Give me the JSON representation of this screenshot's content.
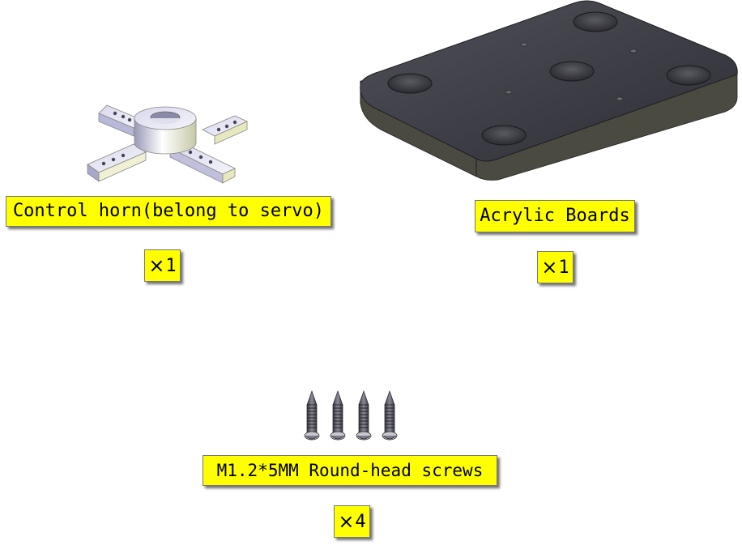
{
  "parts": [
    {
      "name": "Control horn(belong to servo)",
      "quantity_symbol": "×",
      "quantity": "1"
    },
    {
      "name": "Acrylic Boards",
      "quantity_symbol": "×",
      "quantity": "1"
    },
    {
      "name": "M1.2*5MM Round-head screws",
      "quantity_symbol": "×",
      "quantity": "4"
    }
  ],
  "colors": {
    "label_background": "#ffff00",
    "board": "#3b3b42",
    "horn": "#e8e8f0",
    "screw": "#4a4a55"
  }
}
